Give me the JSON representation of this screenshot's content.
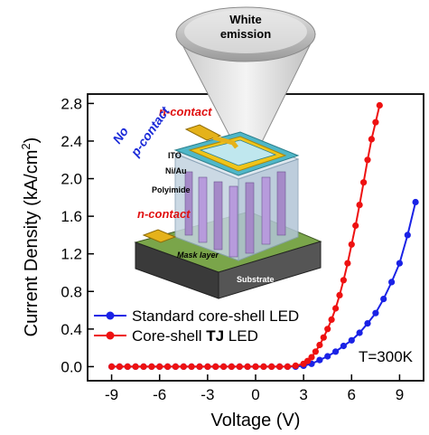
{
  "chart_data": {
    "type": "line",
    "xlabel": "Voltage (V)",
    "ylabel_main": "Current Density (kA/cm",
    "ylabel_sup": "2",
    "ylabel_close": ")",
    "xlim": [
      -10.5,
      10.5
    ],
    "ylim": [
      -0.15,
      2.9
    ],
    "xticks": [
      -9,
      -6,
      -3,
      0,
      3,
      6,
      9
    ],
    "yticks": [
      0.0,
      0.4,
      0.8,
      1.2,
      1.6,
      2.0,
      2.4,
      2.8
    ],
    "xtick_labels": [
      "-9",
      "-6",
      "-3",
      "0",
      "3",
      "6",
      "9"
    ],
    "ytick_labels": [
      "0.0",
      "0.4",
      "0.8",
      "1.2",
      "1.6",
      "2.0",
      "2.4",
      "2.8"
    ],
    "annotation": "T=300K",
    "legend": {
      "placement": "center-left",
      "items": [
        {
          "label_pre": "Standard core-shell LED",
          "label_bold": "",
          "label_post": "",
          "color": "#1a22e6"
        },
        {
          "label_pre": "Core-shell ",
          "label_bold": "TJ",
          "label_post": " LED",
          "color": "#ee1111"
        }
      ]
    },
    "series": [
      {
        "name": "Standard core-shell LED",
        "color": "#1a22e6",
        "x": [
          -9.0,
          -8.5,
          -8.0,
          -7.5,
          -7.0,
          -6.5,
          -6.0,
          -5.5,
          -5.0,
          -4.5,
          -4.0,
          -3.5,
          -3.0,
          -2.5,
          -2.0,
          -1.5,
          -1.0,
          -0.5,
          0.0,
          0.5,
          1.0,
          1.5,
          2.0,
          2.5,
          3.0,
          3.5,
          4.0,
          4.5,
          5.0,
          5.5,
          6.0,
          6.5,
          7.0,
          7.5,
          8.0,
          8.5,
          9.0,
          9.5,
          10.0
        ],
        "y": [
          0.0,
          0.0,
          0.0,
          0.0,
          0.0,
          0.0,
          0.0,
          0.0,
          0.0,
          0.0,
          0.0,
          0.0,
          0.0,
          0.0,
          0.0,
          0.0,
          0.0,
          0.0,
          0.0,
          0.0,
          0.0,
          0.0,
          0.0,
          0.0,
          0.01,
          0.03,
          0.07,
          0.11,
          0.16,
          0.22,
          0.28,
          0.36,
          0.46,
          0.57,
          0.72,
          0.9,
          1.1,
          1.4,
          1.75
        ]
      },
      {
        "name": "Core-shell TJ LED",
        "color": "#ee1111",
        "x": [
          -9.0,
          -8.5,
          -8.0,
          -7.5,
          -7.0,
          -6.5,
          -6.0,
          -5.5,
          -5.0,
          -4.5,
          -4.0,
          -3.5,
          -3.0,
          -2.5,
          -2.0,
          -1.5,
          -1.0,
          -0.5,
          0.0,
          0.5,
          1.0,
          1.5,
          2.0,
          2.5,
          3.0,
          3.25,
          3.5,
          3.75,
          4.0,
          4.25,
          4.5,
          4.75,
          5.0,
          5.25,
          5.5,
          5.75,
          6.0,
          6.25,
          6.5,
          6.75,
          7.0,
          7.25,
          7.5,
          7.75
        ],
        "y": [
          0.0,
          0.0,
          0.0,
          0.0,
          0.0,
          0.0,
          0.0,
          0.0,
          0.0,
          0.0,
          0.0,
          0.0,
          0.0,
          0.0,
          0.0,
          0.0,
          0.0,
          0.0,
          0.0,
          0.0,
          0.0,
          0.0,
          0.0,
          0.01,
          0.03,
          0.06,
          0.1,
          0.16,
          0.23,
          0.31,
          0.4,
          0.5,
          0.62,
          0.76,
          0.92,
          1.1,
          1.3,
          1.5,
          1.72,
          1.96,
          2.2,
          2.42,
          2.6,
          2.78
        ]
      }
    ]
  },
  "inset": {
    "beam_line1": "White",
    "beam_line2": "emission",
    "top_n_contact": "n-contact",
    "no_p_line1": "No",
    "no_p_line2": "p-contact",
    "ito": "ITO",
    "niau": "Ni/Au",
    "polyimide": "Polyimide",
    "left_n_contact": "n-contact",
    "mask_layer": "Mask layer",
    "substrate": "Substrate"
  }
}
